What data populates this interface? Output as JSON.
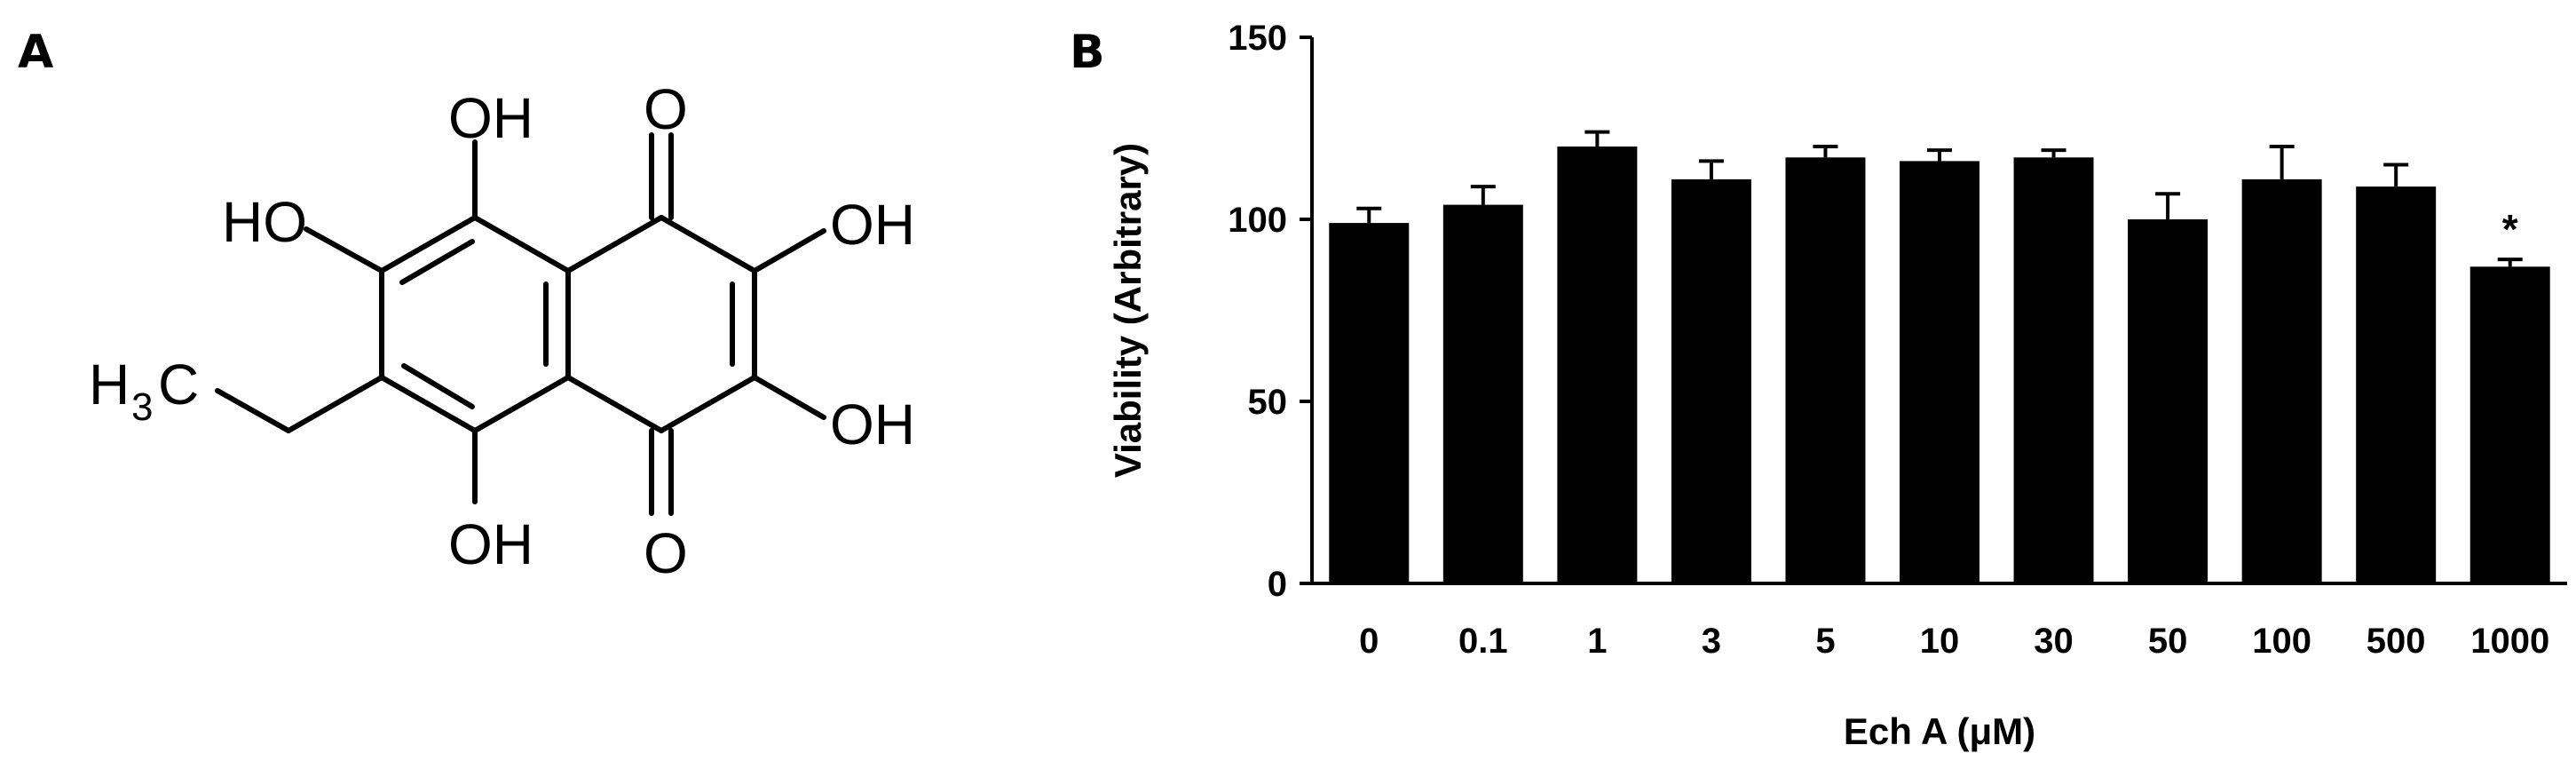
{
  "panels": {
    "a_label": "A",
    "b_label": "B"
  },
  "molecule": {
    "atoms": {
      "oh_top": "OH",
      "ho_left": "HO",
      "o_top": "O",
      "oh_right_top": "OH",
      "h3c_h": "H",
      "h3c_sub": "3",
      "h3c_c": "C",
      "oh_right_bottom": "OH",
      "oh_bottom": "OH",
      "o_bottom": "O"
    }
  },
  "chart_data": {
    "type": "bar",
    "categories": [
      "0",
      "0.1",
      "1",
      "3",
      "5",
      "10",
      "30",
      "50",
      "100",
      "500",
      "1000"
    ],
    "values": [
      99,
      104,
      120,
      111,
      117,
      116,
      117,
      100,
      111,
      109,
      87
    ],
    "errors": [
      4,
      5,
      4,
      5,
      3,
      3,
      2,
      7,
      9,
      6,
      2
    ],
    "annotations": [
      {
        "category": "1000",
        "text": "*"
      }
    ],
    "xlabel": "Ech A (μM)",
    "ylabel": "Viability (Arbitrary)",
    "ylim": [
      0,
      150
    ],
    "yticks": [
      0,
      50,
      100,
      150
    ],
    "grid": false,
    "bar_color": "#000000"
  }
}
